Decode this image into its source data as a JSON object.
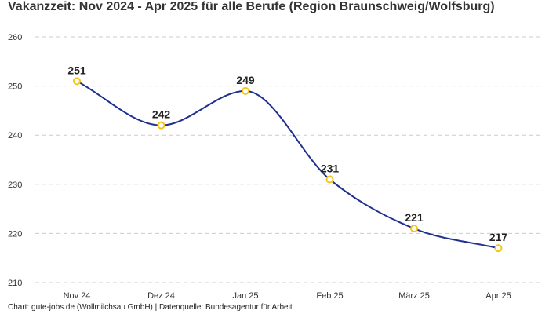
{
  "chart_data": {
    "type": "line",
    "title": "Vakanzzeit: Nov 2024 - Apr 2025 für alle Berufe (Region Braunschweig/Wolfsburg)",
    "categories": [
      "Nov 24",
      "Dez 24",
      "Jan 25",
      "Feb 25",
      "März 25",
      "Apr 25"
    ],
    "values": [
      251,
      242,
      249,
      231,
      221,
      217
    ],
    "ylim": [
      210,
      260
    ],
    "yticks": [
      210,
      220,
      230,
      240,
      250,
      260
    ],
    "xlabel": "",
    "ylabel": "",
    "grid": true,
    "line_color": "#1f2f8f",
    "marker_color": "#f5c518"
  },
  "footer": "Chart: gute-jobs.de (Wollmilchsau GmbH) | Datenquelle: Bundesagentur für Arbeit"
}
